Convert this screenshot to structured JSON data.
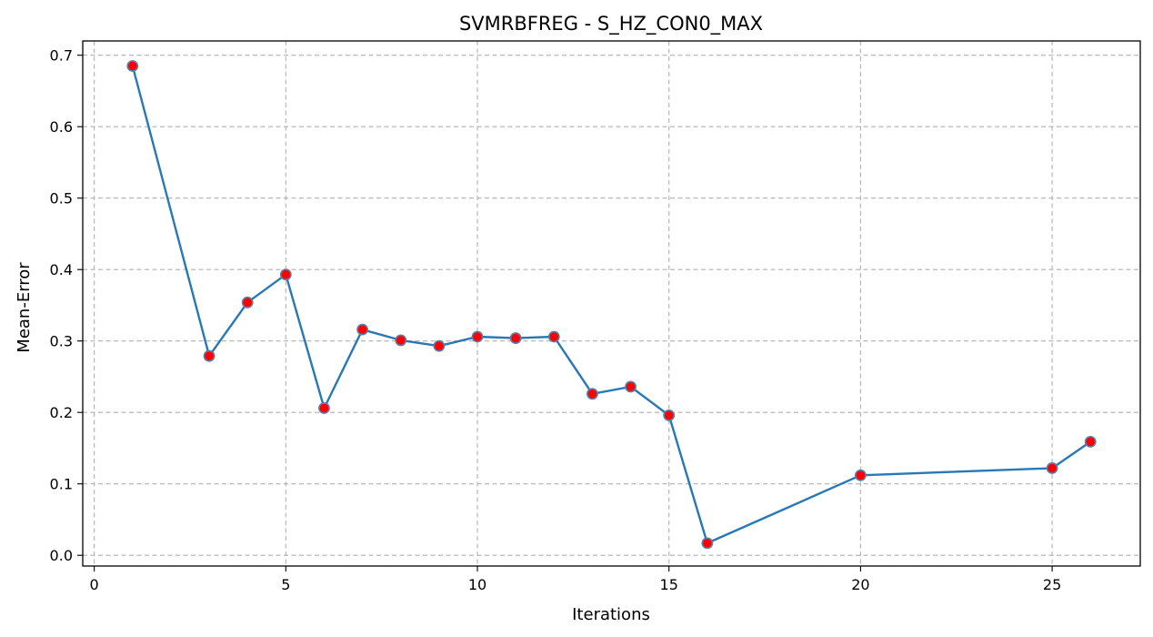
{
  "chart_data": {
    "type": "line",
    "title": "SVMRBFREG - S_HZ_CON0_MAX",
    "xlabel": "Iterations",
    "ylabel": "Mean-Error",
    "xlim": [
      -0.3,
      27.3
    ],
    "ylim": [
      -0.015,
      0.72
    ],
    "xticks": [
      0,
      5,
      10,
      15,
      20,
      25
    ],
    "yticks": [
      0.0,
      0.1,
      0.2,
      0.3,
      0.4,
      0.5,
      0.6,
      0.7
    ],
    "ytick_labels": [
      "0.0",
      "0.1",
      "0.2",
      "0.3",
      "0.4",
      "0.5",
      "0.6",
      "0.7"
    ],
    "grid": true,
    "series": [
      {
        "x": [
          1,
          3,
          4,
          5,
          6,
          7,
          8,
          9,
          10,
          11,
          12,
          13,
          14,
          15,
          16,
          20,
          25,
          26
        ],
        "y": [
          0.685,
          0.279,
          0.354,
          0.393,
          0.206,
          0.316,
          0.301,
          0.293,
          0.306,
          0.304,
          0.306,
          0.226,
          0.236,
          0.196,
          0.017,
          0.112,
          0.122,
          0.159
        ]
      }
    ],
    "colors": {
      "line": "#2878b5",
      "marker_face": "#ff0000",
      "marker_edge": "#5a7fa8"
    }
  }
}
